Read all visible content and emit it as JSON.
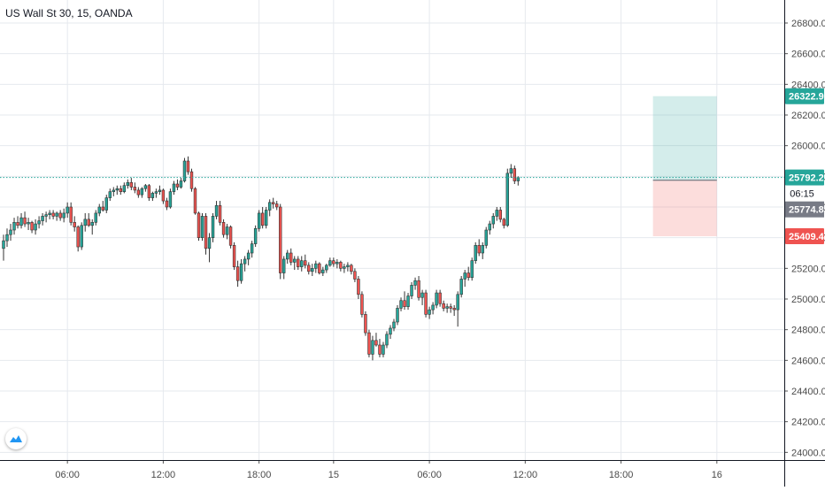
{
  "header": {
    "title": "US Wall St 30, 15, OANDA"
  },
  "colors": {
    "up": "#26a69a",
    "down": "#ef5350",
    "wick": "#333333",
    "grid": "#e6e9ee",
    "axis": "#131722",
    "current_price": "#26a69a",
    "countdown_bg": "#ffffff",
    "position_target_fill": "rgba(38,166,154,0.2)",
    "position_stop_fill": "rgba(239,83,80,0.2)",
    "entry_badge": "#787b86"
  },
  "icons": {
    "logo": "tradingview-logo-icon"
  },
  "chart_data": {
    "type": "candlestick",
    "title": "US Wall St 30, 15, OANDA",
    "symbol": "US Wall St 30",
    "interval": "15",
    "source": "OANDA",
    "y_axis": {
      "position": "right",
      "range": [
        23950,
        26950
      ],
      "ticks": [
        24000,
        24200,
        24400,
        24600,
        24800,
        25000,
        25200,
        25400,
        25600,
        25800,
        26000,
        26200,
        26400,
        26600,
        26800
      ],
      "tick_labels": [
        "24000.0",
        "24200.0",
        "24400.0",
        "24600.0",
        "24800.0",
        "25000.0",
        "25200.0",
        "25400.0",
        "25600.0",
        "25800.0",
        "26000.0",
        "26200.0",
        "26400.0",
        "26600.0",
        "26800.0"
      ]
    },
    "x_axis": {
      "range_bars": [
        0,
        220
      ],
      "ticks": [
        {
          "bar": 18,
          "label": "06:00"
        },
        {
          "bar": 45,
          "label": "12:00"
        },
        {
          "bar": 72,
          "label": "18:00"
        },
        {
          "bar": 93,
          "label": "15"
        },
        {
          "bar": 120,
          "label": "06:00"
        },
        {
          "bar": 147,
          "label": "12:00"
        },
        {
          "bar": 174,
          "label": "18:00"
        },
        {
          "bar": 201,
          "label": "16"
        }
      ]
    },
    "grid": true,
    "legend": "none",
    "current_price": {
      "value": 25792.2,
      "label": "25792.2",
      "countdown": "06:15"
    },
    "position": {
      "type": "long",
      "start_bar": 183,
      "end_bar": 201,
      "target": {
        "value": 26322.9,
        "label": "26322.9"
      },
      "entry": {
        "value": 25774.8,
        "label": "25774.8"
      },
      "stop": {
        "value": 25409.4,
        "label": "25409.4"
      }
    },
    "candles": [
      [
        25330,
        25420,
        25250,
        25380
      ],
      [
        25380,
        25460,
        25340,
        25420
      ],
      [
        25420,
        25490,
        25380,
        25450
      ],
      [
        25450,
        25530,
        25420,
        25500
      ],
      [
        25500,
        25540,
        25460,
        25480
      ],
      [
        25480,
        25560,
        25460,
        25530
      ],
      [
        25530,
        25570,
        25470,
        25490
      ],
      [
        25490,
        25530,
        25450,
        25500
      ],
      [
        25500,
        25510,
        25430,
        25450
      ],
      [
        25450,
        25520,
        25420,
        25490
      ],
      [
        25490,
        25540,
        25460,
        25510
      ],
      [
        25510,
        25560,
        25480,
        25540
      ],
      [
        25540,
        25570,
        25500,
        25550
      ],
      [
        25550,
        25580,
        25520,
        25560
      ],
      [
        25560,
        25580,
        25520,
        25540
      ],
      [
        25540,
        25570,
        25510,
        25560
      ],
      [
        25560,
        25580,
        25510,
        25530
      ],
      [
        25530,
        25590,
        25500,
        25560
      ],
      [
        25560,
        25630,
        25530,
        25600
      ],
      [
        25600,
        25630,
        25480,
        25500
      ],
      [
        25500,
        25540,
        25440,
        25470
      ],
      [
        25470,
        25480,
        25310,
        25340
      ],
      [
        25340,
        25500,
        25320,
        25480
      ],
      [
        25480,
        25560,
        25440,
        25520
      ],
      [
        25520,
        25560,
        25470,
        25480
      ],
      [
        25480,
        25520,
        25420,
        25500
      ],
      [
        25500,
        25580,
        25480,
        25560
      ],
      [
        25560,
        25620,
        25540,
        25600
      ],
      [
        25600,
        25640,
        25570,
        25580
      ],
      [
        25580,
        25680,
        25560,
        25660
      ],
      [
        25660,
        25720,
        25640,
        25700
      ],
      [
        25700,
        25730,
        25670,
        25710
      ],
      [
        25710,
        25740,
        25680,
        25720
      ],
      [
        25720,
        25740,
        25680,
        25700
      ],
      [
        25700,
        25760,
        25690,
        25740
      ],
      [
        25740,
        25780,
        25720,
        25760
      ],
      [
        25760,
        25790,
        25710,
        25730
      ],
      [
        25730,
        25760,
        25690,
        25710
      ],
      [
        25710,
        25730,
        25660,
        25680
      ],
      [
        25680,
        25730,
        25660,
        25720
      ],
      [
        25720,
        25750,
        25700,
        25740
      ],
      [
        25740,
        25750,
        25640,
        25660
      ],
      [
        25660,
        25700,
        25640,
        25690
      ],
      [
        25690,
        25720,
        25660,
        25700
      ],
      [
        25700,
        25740,
        25680,
        25710
      ],
      [
        25710,
        25720,
        25620,
        25640
      ],
      [
        25640,
        25660,
        25580,
        25600
      ],
      [
        25600,
        25720,
        25590,
        25700
      ],
      [
        25700,
        25770,
        25680,
        25750
      ],
      [
        25750,
        25780,
        25710,
        25730
      ],
      [
        25730,
        25790,
        25720,
        25770
      ],
      [
        25770,
        25920,
        25760,
        25900
      ],
      [
        25900,
        25930,
        25810,
        25830
      ],
      [
        25830,
        25850,
        25700,
        25720
      ],
      [
        25720,
        25730,
        25550,
        25560
      ],
      [
        25560,
        25570,
        25380,
        25400
      ],
      [
        25400,
        25560,
        25380,
        25540
      ],
      [
        25540,
        25560,
        25290,
        25330
      ],
      [
        25330,
        25430,
        25240,
        25400
      ],
      [
        25400,
        25560,
        25370,
        25540
      ],
      [
        25540,
        25640,
        25520,
        25610
      ],
      [
        25610,
        25640,
        25480,
        25500
      ],
      [
        25500,
        25520,
        25400,
        25420
      ],
      [
        25420,
        25490,
        25390,
        25470
      ],
      [
        25470,
        25480,
        25330,
        25350
      ],
      [
        25350,
        25370,
        25190,
        25210
      ],
      [
        25210,
        25250,
        25080,
        25120
      ],
      [
        25120,
        25260,
        25100,
        25230
      ],
      [
        25230,
        25280,
        25180,
        25260
      ],
      [
        25260,
        25320,
        25220,
        25300
      ],
      [
        25300,
        25380,
        25270,
        25360
      ],
      [
        25360,
        25480,
        25340,
        25460
      ],
      [
        25460,
        25580,
        25440,
        25560
      ],
      [
        25560,
        25600,
        25460,
        25480
      ],
      [
        25480,
        25600,
        25460,
        25580
      ],
      [
        25580,
        25650,
        25540,
        25630
      ],
      [
        25630,
        25660,
        25590,
        25620
      ],
      [
        25620,
        25640,
        25580,
        25600
      ],
      [
        25600,
        25620,
        25130,
        25170
      ],
      [
        25170,
        25280,
        25130,
        25260
      ],
      [
        25260,
        25320,
        25230,
        25300
      ],
      [
        25300,
        25330,
        25220,
        25240
      ],
      [
        25240,
        25280,
        25190,
        25260
      ],
      [
        25260,
        25280,
        25190,
        25210
      ],
      [
        25210,
        25280,
        25180,
        25250
      ],
      [
        25250,
        25290,
        25200,
        25220
      ],
      [
        25220,
        25240,
        25160,
        25180
      ],
      [
        25180,
        25230,
        25150,
        25200
      ],
      [
        25200,
        25250,
        25170,
        25230
      ],
      [
        25230,
        25240,
        25160,
        25170
      ],
      [
        25170,
        25210,
        25150,
        25190
      ],
      [
        25190,
        25230,
        25170,
        25220
      ],
      [
        25220,
        25270,
        25210,
        25250
      ],
      [
        25250,
        25270,
        25210,
        25230
      ],
      [
        25230,
        25260,
        25200,
        25240
      ],
      [
        25240,
        25250,
        25180,
        25200
      ],
      [
        25200,
        25230,
        25170,
        25210
      ],
      [
        25210,
        25240,
        25180,
        25220
      ],
      [
        25220,
        25230,
        25160,
        25180
      ],
      [
        25180,
        25200,
        25110,
        25130
      ],
      [
        25130,
        25150,
        25000,
        25030
      ],
      [
        25030,
        25050,
        24880,
        24900
      ],
      [
        24900,
        24920,
        24760,
        24780
      ],
      [
        24780,
        24800,
        24620,
        24640
      ],
      [
        24640,
        24760,
        24600,
        24730
      ],
      [
        24730,
        24780,
        24690,
        24700
      ],
      [
        24700,
        24740,
        24620,
        24640
      ],
      [
        24640,
        24720,
        24620,
        24700
      ],
      [
        24700,
        24790,
        24680,
        24770
      ],
      [
        24770,
        24830,
        24740,
        24810
      ],
      [
        24810,
        24870,
        24790,
        24850
      ],
      [
        24850,
        24960,
        24830,
        24940
      ],
      [
        24940,
        25010,
        24920,
        24990
      ],
      [
        24990,
        25050,
        24930,
        24950
      ],
      [
        24950,
        25040,
        24930,
        25020
      ],
      [
        25020,
        25110,
        25000,
        25090
      ],
      [
        25090,
        25140,
        25060,
        25120
      ],
      [
        25120,
        25150,
        24990,
        25010
      ],
      [
        25010,
        25060,
        24960,
        25040
      ],
      [
        25040,
        25060,
        24880,
        24900
      ],
      [
        24900,
        24950,
        24870,
        24930
      ],
      [
        24930,
        24980,
        24900,
        24960
      ],
      [
        24960,
        25060,
        24940,
        25040
      ],
      [
        25040,
        25060,
        24950,
        24970
      ],
      [
        24970,
        24990,
        24920,
        24940
      ],
      [
        24940,
        24970,
        24910,
        24950
      ],
      [
        24950,
        24970,
        24910,
        24940
      ],
      [
        24940,
        24960,
        24890,
        24930
      ],
      [
        24930,
        25050,
        24820,
        25030
      ],
      [
        25030,
        25150,
        25010,
        25130
      ],
      [
        25130,
        25190,
        25080,
        25170
      ],
      [
        25170,
        25210,
        25120,
        25140
      ],
      [
        25140,
        25270,
        25120,
        25250
      ],
      [
        25250,
        25370,
        25230,
        25350
      ],
      [
        25350,
        25390,
        25280,
        25300
      ],
      [
        25300,
        25370,
        25260,
        25350
      ],
      [
        25350,
        25470,
        25330,
        25450
      ],
      [
        25450,
        25510,
        25420,
        25490
      ],
      [
        25490,
        25560,
        25460,
        25540
      ],
      [
        25540,
        25600,
        25510,
        25580
      ],
      [
        25580,
        25600,
        25500,
        25520
      ],
      [
        25520,
        25530,
        25460,
        25480
      ],
      [
        25480,
        25850,
        25470,
        25820
      ],
      [
        25820,
        25880,
        25790,
        25850
      ],
      [
        25850,
        25870,
        25750,
        25770
      ],
      [
        25770,
        25800,
        25740,
        25792.2
      ]
    ]
  }
}
